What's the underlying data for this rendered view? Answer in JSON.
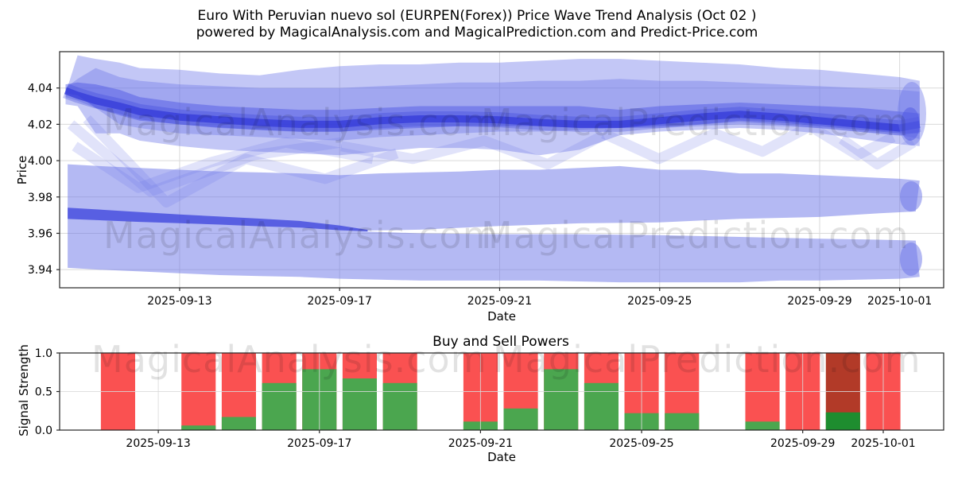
{
  "title": {
    "line1": "Euro With Peruvian nuevo sol (EURPEN(Forex)) Price Wave Trend Analysis (Oct 02 )",
    "line2": "powered by MagicalAnalysis.com and MagicalPrediction.com and Predict-Price.com"
  },
  "watermarks": {
    "analysis": "MagicalAnalysis.com",
    "prediction": "MagicalPrediction.com"
  },
  "colors": {
    "accent_blue": "#6a73e8",
    "deep_blue": "#4a53e2",
    "core_blue": "#3038d8",
    "lower_core_blue": "#3a42dc",
    "sell_red": "#fa5151",
    "buy_green": "#4ba64f",
    "sell_dark_red": "#b23a28",
    "buy_dark_green": "#1e8d2f",
    "grid": "#d9d9d9",
    "frame": "#262626",
    "watermark": "#111111",
    "text": "#000000"
  },
  "chart_data": [
    {
      "type": "area",
      "title": "",
      "xlabel": "Date",
      "ylabel": "Price",
      "x_unit": "days since 2025-09-13",
      "x_range_days": [
        -3.0,
        19.1
      ],
      "ylim": [
        3.93,
        4.06
      ],
      "grid": true,
      "yticks": {
        "values": [
          4.04,
          4.02,
          4.0,
          3.98,
          3.96,
          3.94
        ],
        "labels": [
          "4.04",
          "4.02",
          "4.00",
          "3.98",
          "3.96",
          "3.94"
        ]
      },
      "xticks": {
        "days": [
          0,
          4,
          8,
          12,
          16,
          18
        ],
        "labels": [
          "2025-09-13",
          "2025-09-17",
          "2025-09-21",
          "2025-09-25",
          "2025-09-29",
          "2025-10-01"
        ]
      },
      "series": [
        {
          "name": "upper_trend_center",
          "x_days": [
            0,
            4,
            8,
            12,
            16,
            18
          ],
          "values": [
            4.024,
            4.02,
            4.0225,
            4.022,
            4.022,
            4.018
          ]
        },
        {
          "name": "lower_trend_center",
          "x_days": [
            0,
            4,
            8,
            12,
            16,
            18
          ],
          "values": [
            3.968,
            3.963,
            3.962,
            3.9625,
            3.963,
            3.964
          ]
        }
      ],
      "bands": {
        "upper_x": [
          -2.85,
          -2.55,
          -2.1,
          -1.5,
          -1,
          0,
          1,
          2,
          3,
          4,
          5,
          6,
          7,
          8,
          9,
          10,
          11,
          12,
          13,
          14,
          15,
          16,
          17,
          18,
          18.5
        ],
        "upper_outer_high": [
          4.037,
          4.058,
          4.056,
          4.054,
          4.051,
          4.05,
          4.048,
          4.047,
          4.05,
          4.052,
          4.053,
          4.053,
          4.054,
          4.054,
          4.055,
          4.056,
          4.056,
          4.055,
          4.054,
          4.053,
          4.051,
          4.05,
          4.048,
          4.046,
          4.044
        ],
        "upper_outer_low": [
          4.031,
          4.03,
          4.015,
          4.015,
          4.011,
          4.008,
          4.006,
          4.005,
          4.004,
          4.003,
          4.005,
          4.007,
          4.007,
          4.006,
          4.003,
          4.006,
          4.014,
          4.016,
          4.017,
          4.018,
          4.017,
          4.015,
          4.012,
          4.009,
          4.008
        ],
        "upper_mid_high": [
          4.04,
          4.045,
          4.051,
          4.046,
          4.044,
          4.042,
          4.041,
          4.04,
          4.04,
          4.04,
          4.041,
          4.042,
          4.043,
          4.043,
          4.044,
          4.044,
          4.045,
          4.044,
          4.044,
          4.043,
          4.042,
          4.041,
          4.04,
          4.039,
          4.038
        ],
        "upper_mid_low": [
          4.035,
          4.033,
          4.029,
          4.02,
          4.018,
          4.015,
          4.014,
          4.013,
          4.012,
          4.011,
          4.013,
          4.014,
          4.015,
          4.016,
          4.016,
          4.017,
          4.018,
          4.018,
          4.019,
          4.02,
          4.019,
          4.018,
          4.016,
          4.014,
          4.012
        ],
        "upper_inner_high": [
          4.042,
          4.043,
          4.042,
          4.039,
          4.035,
          4.032,
          4.03,
          4.029,
          4.028,
          4.028,
          4.029,
          4.03,
          4.03,
          4.03,
          4.03,
          4.03,
          4.028,
          4.03,
          4.031,
          4.032,
          4.031,
          4.03,
          4.029,
          4.027,
          4.026
        ],
        "upper_inner_low": [
          4.037,
          4.036,
          4.029,
          4.025,
          4.022,
          4.02,
          4.018,
          4.017,
          4.016,
          4.016,
          4.017,
          4.018,
          4.019,
          4.019,
          4.019,
          4.018,
          4.018,
          4.019,
          4.02,
          4.022,
          4.021,
          4.019,
          4.017,
          4.015,
          4.015
        ],
        "upper_core": [
          4.0385,
          4.036,
          4.033,
          4.03,
          4.027,
          4.024,
          4.0225,
          4.021,
          4.02,
          4.02,
          4.022,
          4.023,
          4.023,
          4.0225,
          4.021,
          4.02,
          4.02,
          4.022,
          4.024,
          4.0255,
          4.024,
          4.022,
          4.02,
          4.018,
          4.02
        ],
        "lower_x": [
          -2.8,
          -2,
          -1,
          0,
          1,
          2,
          3,
          4,
          5,
          6,
          7,
          8,
          9,
          10,
          11,
          12,
          13,
          14,
          15,
          16,
          17,
          18,
          18.5
        ],
        "lower_high": [
          3.998,
          3.997,
          3.996,
          3.995,
          3.994,
          3.9935,
          3.993,
          3.992,
          3.993,
          3.9935,
          3.994,
          3.995,
          3.995,
          3.996,
          3.997,
          3.995,
          3.995,
          3.993,
          3.993,
          3.992,
          3.991,
          3.99,
          3.989
        ],
        "lower_low": [
          3.941,
          3.94,
          3.939,
          3.938,
          3.937,
          3.9365,
          3.936,
          3.935,
          3.9345,
          3.934,
          3.934,
          3.934,
          3.934,
          3.9335,
          3.933,
          3.933,
          3.933,
          3.933,
          3.934,
          3.934,
          3.9345,
          3.935,
          3.936
        ],
        "gap_x": [
          4.7,
          6,
          8,
          10,
          12,
          14,
          16,
          17.5,
          18.4
        ],
        "gap_top": [
          3.9615,
          3.962,
          3.964,
          3.9655,
          3.966,
          3.968,
          3.969,
          3.971,
          3.972
        ],
        "gap_bottom": [
          3.961,
          3.96,
          3.9595,
          3.9595,
          3.959,
          3.958,
          3.957,
          3.9565,
          3.956
        ],
        "lower_core_x": [
          -2.8,
          -1,
          0,
          1,
          2,
          3,
          4,
          4.7
        ],
        "lower_core_y": [
          3.971,
          3.969,
          3.968,
          3.967,
          3.966,
          3.965,
          3.963,
          3.9615
        ],
        "lower_core_halfwidth": [
          0.0031,
          0.0027,
          0.0024,
          0.0022,
          0.0021,
          0.0018,
          0.0013,
          0.0004
        ],
        "accents": [
          {
            "x": [
              -2.72,
              -0.73,
              1.85,
              4.04
            ],
            "y": [
              4.02,
              3.983,
              4.003,
              4.01
            ]
          },
          {
            "x": [
              -2.62,
              -1.03,
              0.76,
              2.65,
              4.83
            ],
            "y": [
              4.008,
              3.985,
              3.999,
              4.01,
              4.001
            ]
          },
          {
            "x": [
              -2.32,
              -0.33,
              1.65,
              3.64,
              5.43
            ],
            "y": [
              4.023,
              3.977,
              4.001,
              3.99,
              4.004
            ]
          },
          {
            "x": [
              4.04,
              5.83,
              7.61,
              9.2,
              10.59
            ],
            "y": [
              4.008,
              4.001,
              4.011,
              3.998,
              4.014
            ]
          },
          {
            "x": [
              10.59,
              11.98,
              13.37,
              14.57,
              15.76,
              16.95,
              17.84
            ],
            "y": [
              4.015,
              4.001,
              4.015,
              4.005,
              4.019,
              4.003,
              4.013
            ]
          },
          {
            "x": [
              16.55,
              17.44,
              18.34
            ],
            "y": [
              4.012,
              3.998,
              4.01
            ]
          }
        ]
      }
    },
    {
      "type": "bar",
      "title": "Buy and Sell Powers",
      "xlabel": "Date",
      "ylabel": "Signal Strength",
      "x_unit": "days since 2025-09-13",
      "x_range_days": [
        -2.45,
        19.5
      ],
      "ylim": [
        0.0,
        1.0
      ],
      "grid": true,
      "bar_width_days": 0.85,
      "yticks": {
        "values": [
          1.0,
          0.5,
          0.0
        ],
        "labels": [
          "1.0",
          "0.5",
          "0.0"
        ]
      },
      "xticks": {
        "days": [
          0,
          4,
          8,
          12,
          16,
          18
        ],
        "labels": [
          "2025-09-13",
          "2025-09-17",
          "2025-09-21",
          "2025-09-25",
          "2025-09-29",
          "2025-10-01"
        ]
      },
      "legend": null,
      "bars": [
        {
          "date": "2025-09-12",
          "day": -1,
          "sell": 1.0,
          "buy": 0.0,
          "variant": "normal"
        },
        {
          "date": "2025-09-14",
          "day": 1,
          "sell": 1.0,
          "buy": 0.06,
          "variant": "normal"
        },
        {
          "date": "2025-09-15",
          "day": 2,
          "sell": 1.0,
          "buy": 0.17,
          "variant": "normal"
        },
        {
          "date": "2025-09-16",
          "day": 3,
          "sell": 1.0,
          "buy": 0.61,
          "variant": "normal"
        },
        {
          "date": "2025-09-17",
          "day": 4,
          "sell": 1.0,
          "buy": 0.79,
          "variant": "normal"
        },
        {
          "date": "2025-09-18",
          "day": 5,
          "sell": 1.0,
          "buy": 0.67,
          "variant": "normal"
        },
        {
          "date": "2025-09-19",
          "day": 6,
          "sell": 1.0,
          "buy": 0.61,
          "variant": "normal"
        },
        {
          "date": "2025-09-21",
          "day": 8,
          "sell": 1.0,
          "buy": 0.11,
          "variant": "normal"
        },
        {
          "date": "2025-09-22",
          "day": 9,
          "sell": 1.0,
          "buy": 0.28,
          "variant": "normal"
        },
        {
          "date": "2025-09-23",
          "day": 10,
          "sell": 1.0,
          "buy": 0.79,
          "variant": "normal"
        },
        {
          "date": "2025-09-24",
          "day": 11,
          "sell": 1.0,
          "buy": 0.61,
          "variant": "normal"
        },
        {
          "date": "2025-09-25",
          "day": 12,
          "sell": 1.0,
          "buy": 0.22,
          "variant": "normal"
        },
        {
          "date": "2025-09-26",
          "day": 13,
          "sell": 1.0,
          "buy": 0.22,
          "variant": "normal"
        },
        {
          "date": "2025-09-28",
          "day": 15,
          "sell": 1.0,
          "buy": 0.11,
          "variant": "normal"
        },
        {
          "date": "2025-09-29",
          "day": 16,
          "sell": 1.0,
          "buy": 0.0,
          "variant": "normal"
        },
        {
          "date": "2025-09-30",
          "day": 17,
          "sell": 1.0,
          "buy": 0.23,
          "variant": "dark"
        },
        {
          "date": "2025-10-01",
          "day": 18,
          "sell": 1.0,
          "buy": 0.0,
          "variant": "normal"
        }
      ]
    }
  ]
}
